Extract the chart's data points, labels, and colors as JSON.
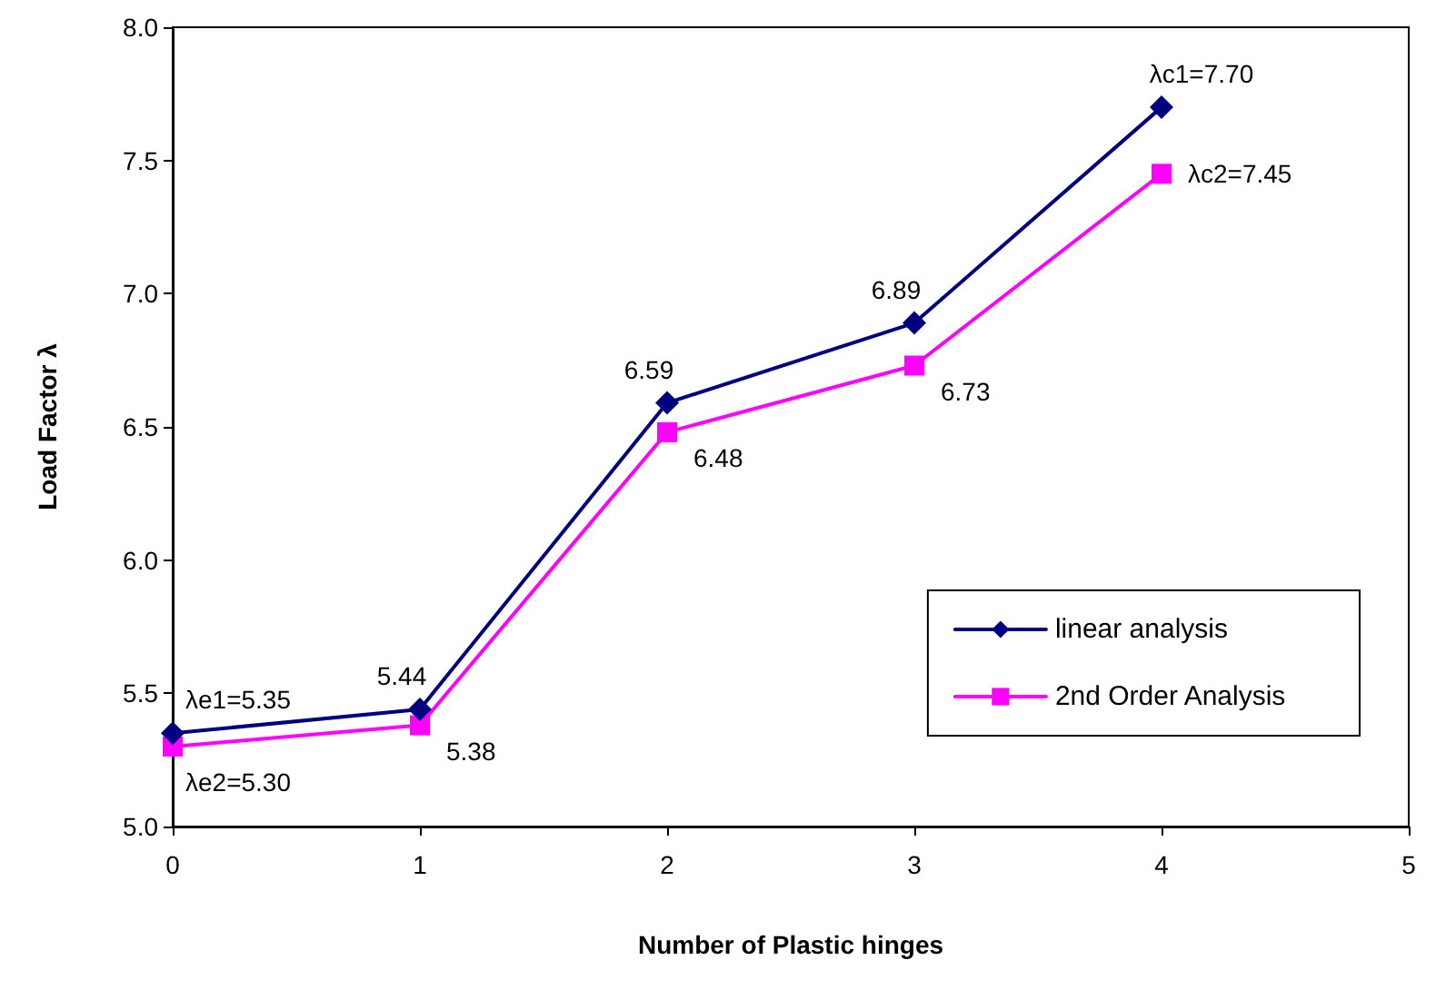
{
  "chart_data": {
    "type": "line",
    "xlabel": "Number of Plastic hinges",
    "ylabel": "Load Factor λ",
    "x": [
      0,
      1,
      2,
      3,
      4
    ],
    "series": [
      {
        "name": "linear analysis",
        "color": "#000080",
        "marker": "diamond",
        "values": [
          5.35,
          5.44,
          6.59,
          6.89,
          7.7
        ],
        "value_labels": [
          "λe1=5.35",
          "5.44",
          "6.59",
          "6.89",
          "λc1=7.70"
        ]
      },
      {
        "name": "2nd Order Analysis",
        "color": "#ff00ff",
        "marker": "square",
        "values": [
          5.3,
          5.38,
          6.48,
          6.73,
          7.45
        ],
        "value_labels": [
          "λe2=5.30",
          "5.38",
          "6.48",
          "6.73",
          "λc2=7.45"
        ]
      }
    ],
    "xlim": [
      0,
      5
    ],
    "xticks": [
      0,
      1,
      2,
      3,
      4,
      5
    ],
    "ylim": [
      5,
      8
    ],
    "yticks": [
      {
        "value": 5,
        "label": "5.0"
      },
      {
        "value": 5.5,
        "label": "5.5"
      },
      {
        "value": 6,
        "label": "6.0"
      },
      {
        "value": 6.5,
        "label": "6.5"
      },
      {
        "value": 7,
        "label": "7.0"
      },
      {
        "value": 7.5,
        "label": "7.5"
      },
      {
        "value": 8,
        "label": "8.0"
      }
    ],
    "grid": false,
    "legend": "bottom right",
    "line_style": "solid"
  }
}
